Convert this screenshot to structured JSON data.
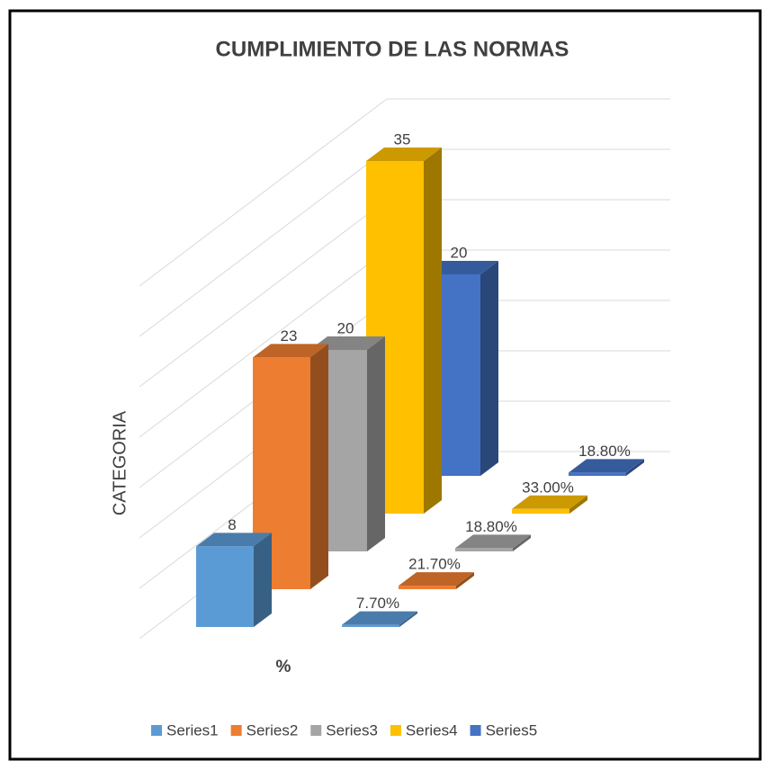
{
  "chart_data": {
    "type": "bar3d",
    "title": "CUMPLIMIENTO DE LAS NORMAS",
    "y_label": "CATEGORIA",
    "x_label": "%",
    "categories": [
      null,
      null
    ],
    "ylim": [
      0,
      35
    ],
    "yticks": [
      0,
      5,
      10,
      15,
      20,
      25,
      30,
      35
    ],
    "grid": true,
    "legend": "bottom",
    "series": [
      {
        "name": "Series1",
        "color": "#5b9bd5",
        "values": [
          8,
          0.077
        ],
        "value_labels": [
          "8",
          "7.70%"
        ]
      },
      {
        "name": "Series2",
        "color": "#ed7d31",
        "values": [
          23,
          0.217
        ],
        "value_labels": [
          "23",
          "21.70%"
        ]
      },
      {
        "name": "Series3",
        "color": "#a5a5a5",
        "values": [
          20,
          0.188
        ],
        "value_labels": [
          "20",
          "18.80%"
        ]
      },
      {
        "name": "Series4",
        "color": "#ffc000",
        "values": [
          35,
          0.33
        ],
        "value_labels": [
          "35",
          "33.00%"
        ]
      },
      {
        "name": "Series5",
        "color": "#4472c4",
        "values": [
          20,
          0.188
        ],
        "value_labels": [
          "20",
          "18.80%"
        ]
      }
    ]
  }
}
